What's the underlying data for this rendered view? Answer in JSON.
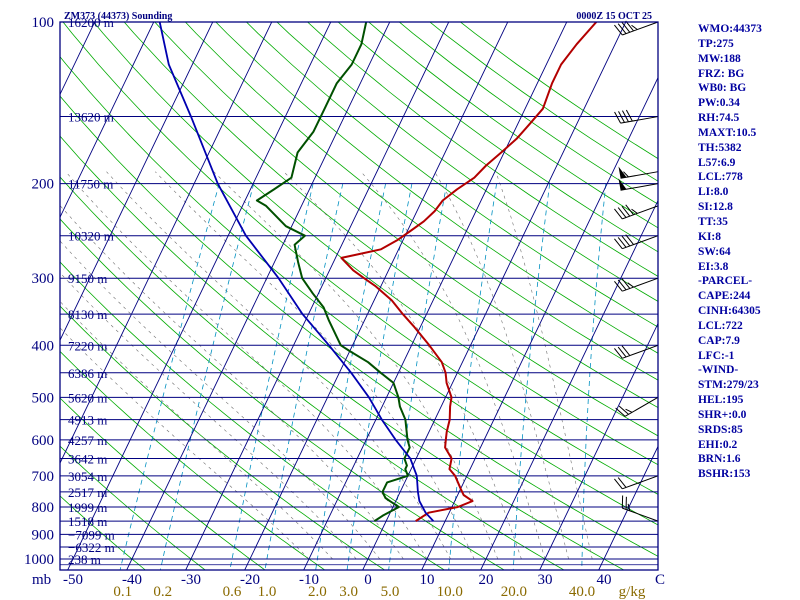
{
  "header": {
    "title": "ZM373 (44373) Sounding",
    "time": "0000Z 15 OCT 25"
  },
  "chart_data": {
    "type": "line",
    "chart_kind": "Skew-T log-P sounding",
    "pressure_levels": [
      {
        "p": 100,
        "label": "100",
        "height": "16200 m"
      },
      {
        "p": 150,
        "label": "",
        "height": "13620 m"
      },
      {
        "p": 200,
        "label": "200",
        "height": "11750 m"
      },
      {
        "p": 250,
        "label": "",
        "height": "10320 m"
      },
      {
        "p": 300,
        "label": "300",
        "height": "9150 m"
      },
      {
        "p": 350,
        "label": "",
        "height": "8130 m"
      },
      {
        "p": 400,
        "label": "400",
        "height": "7220 m"
      },
      {
        "p": 450,
        "label": "",
        "height": "6386 m"
      },
      {
        "p": 500,
        "label": "500",
        "height": "5620 m"
      },
      {
        "p": 550,
        "label": "",
        "height": "4913 m"
      },
      {
        "p": 600,
        "label": "600",
        "height": "4257 m"
      },
      {
        "p": 650,
        "label": "",
        "height": "3642 m"
      },
      {
        "p": 700,
        "label": "700",
        "height": "3054 m"
      },
      {
        "p": 750,
        "label": "",
        "height": "2517 m"
      },
      {
        "p": 800,
        "label": "800",
        "height": "1999 m"
      },
      {
        "p": 850,
        "label": "",
        "height": "1518 m"
      },
      {
        "p": 900,
        "label": "900",
        "height": "−7099 m"
      },
      {
        "p": 950,
        "label": "",
        "height": "−6322 m"
      },
      {
        "p": 1000,
        "label": "1000",
        "height": "238 m"
      }
    ],
    "pressure_unit": "mb",
    "temperature_ticks": [
      "-50",
      "-40",
      "-30",
      "-20",
      "-10",
      "0",
      "10",
      "20",
      "30",
      "40"
    ],
    "temperature_unit": "C",
    "mixing_ratio_ticks": [
      "0.1",
      "0.2",
      "0.6",
      "1.0",
      "2.0",
      "3.0",
      "5.0",
      "10.0",
      "20.0",
      "40.0"
    ],
    "mixing_ratio_values": [
      0.1,
      0.2,
      0.6,
      1.0,
      2.0,
      3.0,
      5.0,
      10.0,
      20.0,
      40.0
    ],
    "mixing_ratio_unit": "g/kg",
    "temperature_ylim": [
      1050,
      100
    ],
    "series": [
      {
        "name": "Temperature",
        "color": "#b30000",
        "points": [
          [
            850,
            5
          ],
          [
            820,
            6.5
          ],
          [
            800,
            11
          ],
          [
            780,
            13
          ],
          [
            760,
            11
          ],
          [
            740,
            10
          ],
          [
            700,
            8
          ],
          [
            680,
            6.5
          ],
          [
            650,
            6
          ],
          [
            620,
            4
          ],
          [
            600,
            3.5
          ],
          [
            580,
            3
          ],
          [
            550,
            2.5
          ],
          [
            520,
            1.5
          ],
          [
            500,
            1
          ],
          [
            470,
            -1
          ],
          [
            450,
            -2
          ],
          [
            430,
            -3.5
          ],
          [
            400,
            -7
          ],
          [
            370,
            -11
          ],
          [
            350,
            -14
          ],
          [
            330,
            -17
          ],
          [
            310,
            -21
          ],
          [
            300,
            -23.5
          ],
          [
            290,
            -26
          ],
          [
            280,
            -28
          ],
          [
            275,
            -29
          ],
          [
            270,
            -26
          ],
          [
            265,
            -23
          ],
          [
            255,
            -21
          ],
          [
            245,
            -19.5
          ],
          [
            235,
            -18
          ],
          [
            225,
            -17
          ],
          [
            215,
            -16.5
          ],
          [
            205,
            -15
          ],
          [
            195,
            -13
          ],
          [
            185,
            -12
          ],
          [
            175,
            -10.5
          ],
          [
            165,
            -9
          ],
          [
            155,
            -8
          ],
          [
            145,
            -7
          ],
          [
            130,
            -7.5
          ],
          [
            120,
            -7.5
          ],
          [
            110,
            -6.5
          ],
          [
            100,
            -5
          ]
        ]
      },
      {
        "name": "Dew point",
        "color": "#005000",
        "points": [
          [
            850,
            -2
          ],
          [
            830,
            -1
          ],
          [
            800,
            1
          ],
          [
            780,
            -1
          ],
          [
            770,
            -2
          ],
          [
            750,
            -3
          ],
          [
            720,
            -3
          ],
          [
            700,
            0
          ],
          [
            680,
            -1
          ],
          [
            670,
            -1
          ],
          [
            650,
            -2
          ],
          [
            620,
            -2
          ],
          [
            600,
            -3
          ],
          [
            550,
            -5
          ],
          [
            520,
            -7
          ],
          [
            500,
            -8
          ],
          [
            470,
            -10
          ],
          [
            450,
            -13
          ],
          [
            430,
            -16
          ],
          [
            410,
            -20
          ],
          [
            400,
            -22
          ],
          [
            360,
            -26
          ],
          [
            340,
            -28
          ],
          [
            320,
            -31
          ],
          [
            300,
            -34
          ],
          [
            280,
            -36
          ],
          [
            260,
            -38
          ],
          [
            250,
            -37
          ],
          [
            240,
            -41
          ],
          [
            220,
            -46
          ],
          [
            215,
            -48
          ],
          [
            205,
            -46
          ],
          [
            195,
            -44
          ],
          [
            175,
            -45
          ],
          [
            160,
            -44
          ],
          [
            145,
            -44
          ],
          [
            130,
            -44
          ],
          [
            120,
            -43
          ],
          [
            110,
            -43
          ],
          [
            100,
            -44
          ]
        ]
      },
      {
        "name": "Parcel path",
        "color": "#0000b0",
        "points": [
          [
            850,
            8
          ],
          [
            820,
            6
          ],
          [
            780,
            4
          ],
          [
            750,
            3
          ],
          [
            700,
            1.5
          ],
          [
            650,
            -1
          ],
          [
            600,
            -5
          ],
          [
            550,
            -9
          ],
          [
            500,
            -13
          ],
          [
            450,
            -18
          ],
          [
            400,
            -24
          ],
          [
            350,
            -31
          ],
          [
            300,
            -38
          ],
          [
            250,
            -47
          ],
          [
            200,
            -56
          ],
          [
            150,
            -66
          ],
          [
            120,
            -74
          ],
          [
            100,
            -79
          ]
        ]
      }
    ],
    "wind_barbs": [
      {
        "p": 850,
        "dir": 290,
        "kt": 25
      },
      {
        "p": 700,
        "dir": 250,
        "kt": 20
      },
      {
        "p": 500,
        "dir": 240,
        "kt": 25
      },
      {
        "p": 400,
        "dir": 250,
        "kt": 30
      },
      {
        "p": 300,
        "dir": 250,
        "kt": 35
      },
      {
        "p": 250,
        "dir": 250,
        "kt": 40
      },
      {
        "p": 220,
        "dir": 250,
        "kt": 45
      },
      {
        "p": 200,
        "dir": 260,
        "kt": 50
      },
      {
        "p": 190,
        "dir": 260,
        "kt": 55
      },
      {
        "p": 150,
        "dir": 260,
        "kt": 40
      },
      {
        "p": 100,
        "dir": 250,
        "kt": 45
      }
    ]
  },
  "sidebar": {
    "items": [
      "WMO:44373",
      "TP:275",
      "MW:188",
      "FRZ: BG",
      "WB0: BG",
      "PW:0.34",
      "RH:74.5",
      "MAXT:10.5",
      "TH:5382",
      "L57:6.9",
      "LCL:778",
      "LI:8.0",
      "SI:12.8",
      "TT:35",
      "KI:8",
      "SW:64",
      "EI:3.8",
      "-PARCEL-",
      "CAPE:244",
      "CINH:64305",
      "LCL:722",
      "CAP:7.9",
      "LFC:-1",
      "-WIND-",
      "STM:279/23",
      "HEL:195",
      "SHR+:0.0",
      "SRDS:85",
      "EHI:0.2",
      "BRN:1.6",
      "BSHR:153"
    ]
  },
  "colors": {
    "frame": "#000080",
    "isobar": "#000080",
    "isotherm": "#000080",
    "dry_adiabat": "#00aa00",
    "moist_adiabat": "#707070",
    "mixing_ratio": "#0090c0",
    "axis_text": "#000080",
    "mixing_text": "#8a6a00"
  }
}
